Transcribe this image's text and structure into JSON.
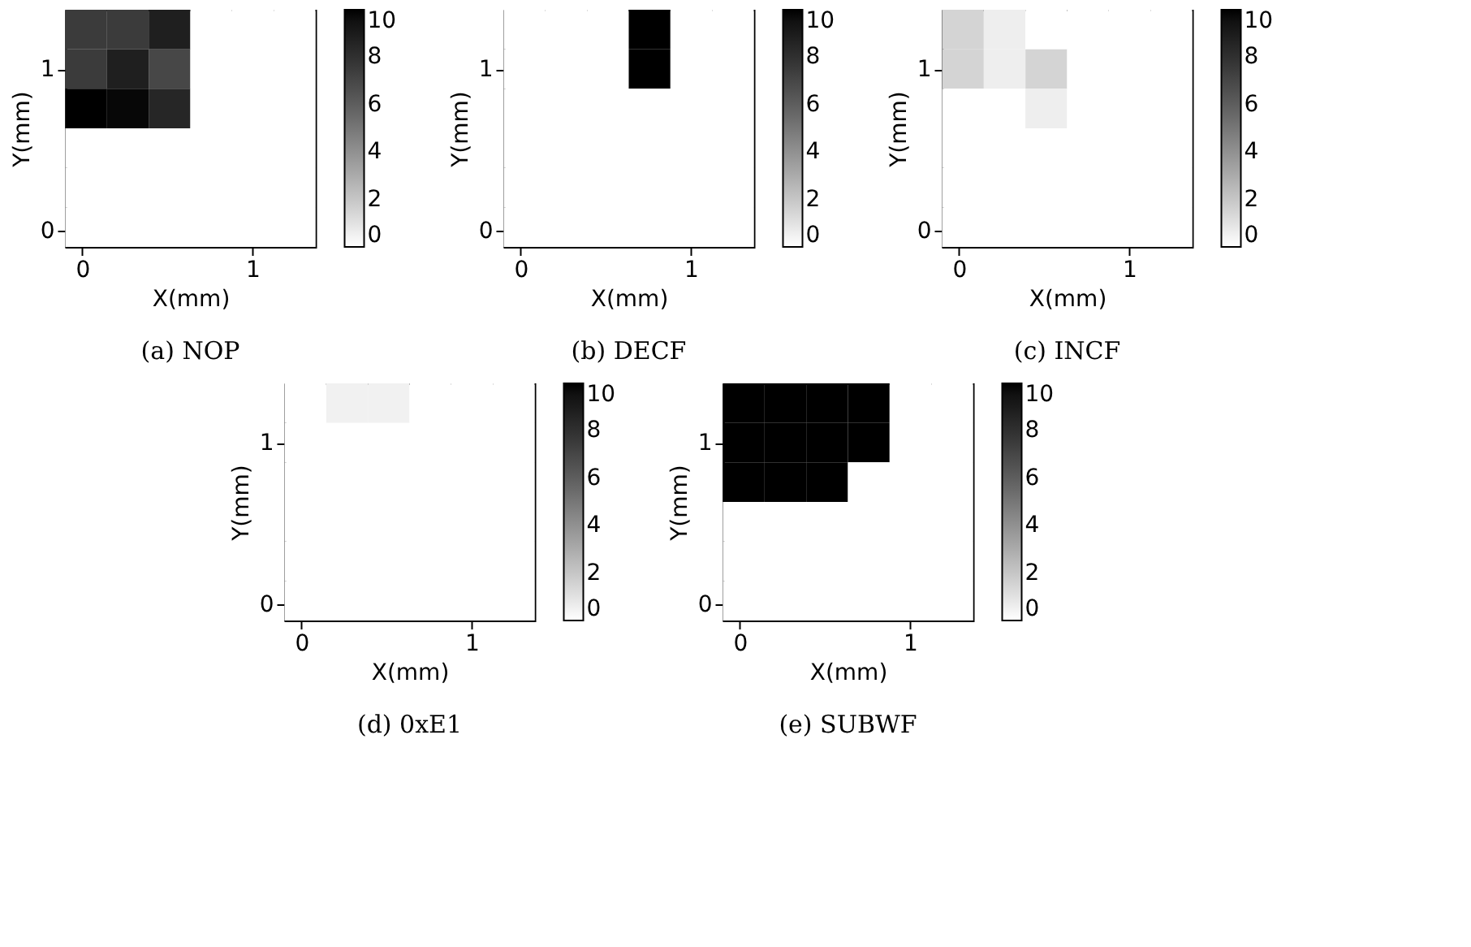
{
  "chart_data": [
    {
      "type": "heatmap",
      "title": "(a) NOP",
      "xlabel": "X(mm)",
      "ylabel": "Y(mm)",
      "xlim": [
        -0.1,
        1.37
      ],
      "ylim": [
        -0.1,
        1.37
      ],
      "xticks": [
        0,
        1
      ],
      "yticks": [
        0,
        1
      ],
      "clim": [
        0,
        10
      ],
      "cticks": [
        0,
        2,
        4,
        6,
        8,
        10
      ],
      "cells": [
        [
          7.5,
          7.5,
          8.8,
          0,
          0,
          0
        ],
        [
          7.5,
          8.8,
          7,
          0,
          0,
          0
        ],
        [
          10,
          9.8,
          8.5,
          0,
          0,
          0
        ],
        [
          0,
          0,
          0,
          0,
          0,
          0
        ],
        [
          0,
          0,
          0,
          0,
          0,
          0
        ],
        [
          0,
          0,
          0,
          0,
          0,
          0
        ]
      ]
    },
    {
      "type": "heatmap",
      "title": "(b) DECF",
      "xlabel": "X(mm)",
      "ylabel": "Y(mm)",
      "xlim": [
        -0.1,
        1.37
      ],
      "ylim": [
        -0.1,
        1.37
      ],
      "xticks": [
        0,
        1
      ],
      "yticks": [
        0,
        1
      ],
      "clim": [
        0,
        10
      ],
      "cticks": [
        0,
        2,
        4,
        6,
        8,
        10
      ],
      "cells": [
        [
          0,
          0,
          0,
          10,
          0,
          0
        ],
        [
          0,
          0,
          0,
          10,
          0,
          0
        ],
        [
          0,
          0,
          0,
          0,
          0,
          0
        ],
        [
          0,
          0,
          0,
          0,
          0,
          0
        ],
        [
          0,
          0,
          0,
          0,
          0,
          0
        ],
        [
          0,
          0,
          0,
          0,
          0,
          0
        ]
      ]
    },
    {
      "type": "heatmap",
      "title": "(c) INCF",
      "xlabel": "X(mm)",
      "ylabel": "Y(mm)",
      "xlim": [
        -0.1,
        1.37
      ],
      "ylim": [
        -0.1,
        1.37
      ],
      "xticks": [
        0,
        1
      ],
      "yticks": [
        0,
        1
      ],
      "clim": [
        0,
        10
      ],
      "cticks": [
        0,
        2,
        4,
        6,
        8,
        10
      ],
      "cells": [
        [
          1.5,
          0.6,
          0,
          0,
          0,
          0
        ],
        [
          1.5,
          0.6,
          1.5,
          0,
          0,
          0
        ],
        [
          0,
          0,
          0.6,
          0,
          0,
          0
        ],
        [
          0,
          0,
          0,
          0,
          0,
          0
        ],
        [
          0,
          0,
          0,
          0,
          0,
          0
        ],
        [
          0,
          0,
          0,
          0,
          0,
          0
        ]
      ]
    },
    {
      "type": "heatmap",
      "title": "(d) 0xE1",
      "xlabel": "X(mm)",
      "ylabel": "Y(mm)",
      "xlim": [
        -0.1,
        1.37
      ],
      "ylim": [
        -0.1,
        1.37
      ],
      "xticks": [
        0,
        1
      ],
      "yticks": [
        0,
        1
      ],
      "clim": [
        0,
        10
      ],
      "cticks": [
        0,
        2,
        4,
        6,
        8,
        10
      ],
      "cells": [
        [
          0,
          0.5,
          0.5,
          0,
          0,
          0
        ],
        [
          0,
          0,
          0,
          0,
          0,
          0
        ],
        [
          0,
          0,
          0,
          0,
          0,
          0
        ],
        [
          0,
          0,
          0,
          0,
          0,
          0
        ],
        [
          0,
          0,
          0,
          0,
          0,
          0
        ],
        [
          0,
          0,
          0,
          0,
          0,
          0
        ]
      ]
    },
    {
      "type": "heatmap",
      "title": "(e) SUBWF",
      "xlabel": "X(mm)",
      "ylabel": "Y(mm)",
      "xlim": [
        -0.1,
        1.37
      ],
      "ylim": [
        -0.1,
        1.37
      ],
      "xticks": [
        0,
        1
      ],
      "yticks": [
        0,
        1
      ],
      "clim": [
        0,
        10
      ],
      "cticks": [
        0,
        2,
        4,
        6,
        8,
        10
      ],
      "cells": [
        [
          10,
          10,
          10,
          10,
          0,
          0
        ],
        [
          10,
          10,
          10,
          10,
          0,
          0
        ],
        [
          10,
          10,
          10,
          0,
          0,
          0
        ],
        [
          0,
          0,
          0,
          0,
          0,
          0
        ],
        [
          0,
          0,
          0,
          0,
          0,
          0
        ],
        [
          0,
          0,
          0,
          0,
          0,
          0
        ]
      ]
    }
  ]
}
